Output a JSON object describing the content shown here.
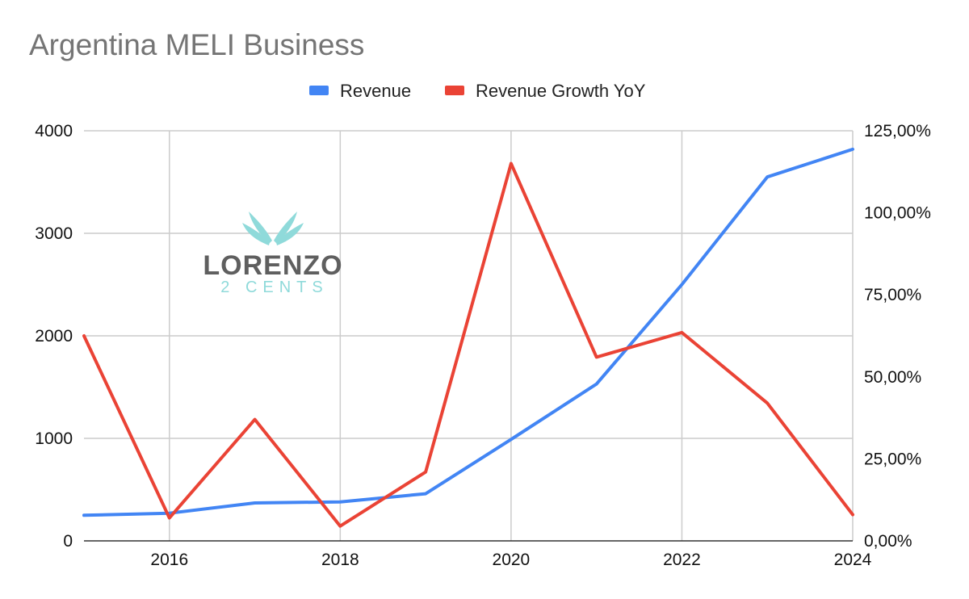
{
  "chart_data": {
    "type": "line",
    "title": "Argentina MELI Business",
    "x": [
      2015,
      2016,
      2017,
      2018,
      2019,
      2020,
      2021,
      2022,
      2023,
      2024
    ],
    "x_ticks": [
      "2016",
      "2018",
      "2020",
      "2022",
      "2024"
    ],
    "xlim": [
      2015,
      2024
    ],
    "left_axis": {
      "ylim": [
        0,
        4000
      ],
      "ticks": [
        "0",
        "1000",
        "2000",
        "3000",
        "4000"
      ]
    },
    "right_axis": {
      "ylim": [
        0,
        125
      ],
      "ticks": [
        "0,00%",
        "25,00%",
        "50,00%",
        "75,00%",
        "100,00%",
        "125,00%"
      ]
    },
    "series": [
      {
        "name": "Revenue",
        "axis": "left",
        "color": "#4285f4",
        "values": [
          250,
          270,
          370,
          380,
          460,
          990,
          1530,
          2500,
          3550,
          3820
        ]
      },
      {
        "name": "Revenue Growth YoY",
        "axis": "right",
        "color": "#ea4335",
        "values": [
          62.5,
          7,
          37,
          4.5,
          21,
          115,
          56,
          63.5,
          42,
          8
        ]
      }
    ],
    "grid": true,
    "legend_position": "top-center"
  },
  "watermark": {
    "main": "LORENZO",
    "sub": "2 CENTS",
    "icon": "wings-icon",
    "main_color": "#5f5f5f",
    "accent_color": "#8fdada"
  }
}
